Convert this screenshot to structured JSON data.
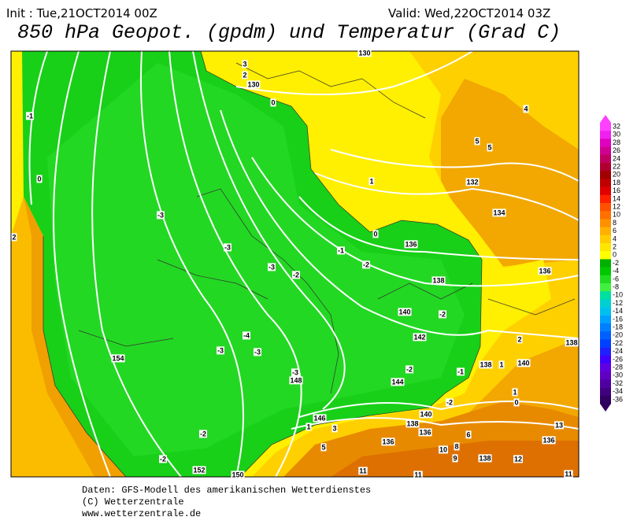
{
  "header": {
    "init": "Init : Tue,21OCT2014 00Z",
    "valid": "Valid: Wed,22OCT2014 03Z",
    "title": "850 hPa Geopot. (gpdm) und Temperatur (Grad C)"
  },
  "footer": {
    "line1": "Daten: GFS-Modell des amerikanischen Wetterdienstes",
    "line2": "(C) Wetterzentrale",
    "line3": "www.wetterzentrale.de"
  },
  "colorbar": {
    "levels": [
      32,
      30,
      28,
      26,
      24,
      22,
      20,
      18,
      16,
      14,
      12,
      10,
      8,
      6,
      4,
      2,
      0,
      -2,
      -4,
      -6,
      -8,
      -10,
      -12,
      -14,
      -16,
      -18,
      -20,
      -22,
      -24,
      -26,
      -28,
      -30,
      -32,
      -34,
      -36
    ],
    "colors": [
      "#ff40ff",
      "#f020f0",
      "#e000c0",
      "#d00090",
      "#c00060",
      "#b00030",
      "#a00000",
      "#c00000",
      "#e00000",
      "#ff2000",
      "#ff5000",
      "#ff7000",
      "#ff9000",
      "#ffb000",
      "#ffcc00",
      "#ffe600",
      "#ffff00",
      "#00b000",
      "#00c800",
      "#20dc20",
      "#40f040",
      "#00e0a0",
      "#00d0d0",
      "#00c0f0",
      "#00a0ff",
      "#0080ff",
      "#0060ff",
      "#0040ff",
      "#2020ff",
      "#4000ff",
      "#6000e0",
      "#6000c0",
      "#5000a0",
      "#400080",
      "#300060"
    ]
  },
  "contour_labels": [
    "3",
    "2",
    "130",
    "130",
    "0",
    "-1",
    "0",
    "2",
    "1",
    "132",
    "134",
    "5",
    "5",
    "4",
    "0",
    "136",
    "-1",
    "-2",
    "-3",
    "-3",
    "-3",
    "-2",
    "138",
    "136",
    "140",
    "-2",
    "138",
    "142",
    "-4",
    "-3",
    "-3",
    "154",
    "2",
    "140",
    "138",
    "1",
    "-1",
    "-3",
    "148",
    "-2",
    "144",
    "1",
    "0",
    "-2",
    "140",
    "146",
    "138",
    "136",
    "1",
    "3",
    "5",
    "6",
    "136",
    "-2",
    "-2",
    "152",
    "150",
    "10",
    "8",
    "9",
    "138",
    "12",
    "11",
    "11",
    "11",
    "13",
    "136"
  ]
}
